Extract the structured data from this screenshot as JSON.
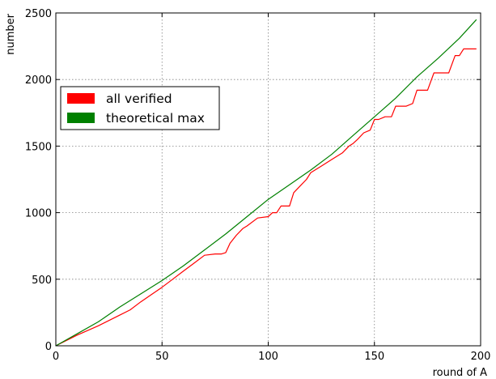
{
  "chart_data": {
    "type": "line",
    "title": "",
    "xlabel": "round of A",
    "ylabel": "number",
    "xlim": [
      0,
      200
    ],
    "ylim": [
      0,
      2500
    ],
    "xticks": [
      0,
      50,
      100,
      150,
      200
    ],
    "yticks": [
      0,
      500,
      1000,
      1500,
      2000,
      2500
    ],
    "grid": true,
    "legend_position": "upper-left",
    "series": [
      {
        "name": "all verified",
        "color": "#ff0000",
        "x": [
          0,
          10,
          20,
          30,
          35,
          40,
          45,
          50,
          55,
          60,
          65,
          70,
          75,
          78,
          80,
          82,
          85,
          88,
          90,
          95,
          100,
          102,
          104,
          106,
          110,
          112,
          115,
          118,
          120,
          125,
          130,
          135,
          138,
          140,
          142,
          145,
          148,
          150,
          152,
          155,
          158,
          160,
          162,
          165,
          168,
          170,
          172,
          175,
          178,
          180,
          182,
          185,
          188,
          190,
          192,
          195,
          198
        ],
        "y": [
          0,
          80,
          150,
          230,
          270,
          330,
          385,
          440,
          500,
          560,
          620,
          680,
          690,
          690,
          700,
          770,
          830,
          880,
          900,
          960,
          970,
          1000,
          1000,
          1050,
          1050,
          1150,
          1200,
          1250,
          1300,
          1350,
          1400,
          1450,
          1500,
          1520,
          1550,
          1600,
          1620,
          1700,
          1700,
          1720,
          1720,
          1800,
          1800,
          1800,
          1820,
          1920,
          1920,
          1920,
          2050,
          2050,
          2050,
          2050,
          2180,
          2180,
          2230,
          2230,
          2230
        ]
      },
      {
        "name": "theoretical max",
        "color": "#008000",
        "x": [
          0,
          10,
          20,
          30,
          40,
          50,
          60,
          70,
          80,
          90,
          100,
          110,
          120,
          130,
          140,
          150,
          160,
          170,
          180,
          190,
          198
        ],
        "y": [
          0,
          90,
          180,
          290,
          390,
          490,
          600,
          720,
          840,
          970,
          1100,
          1210,
          1320,
          1440,
          1580,
          1720,
          1860,
          2020,
          2160,
          2310,
          2450
        ]
      }
    ]
  }
}
